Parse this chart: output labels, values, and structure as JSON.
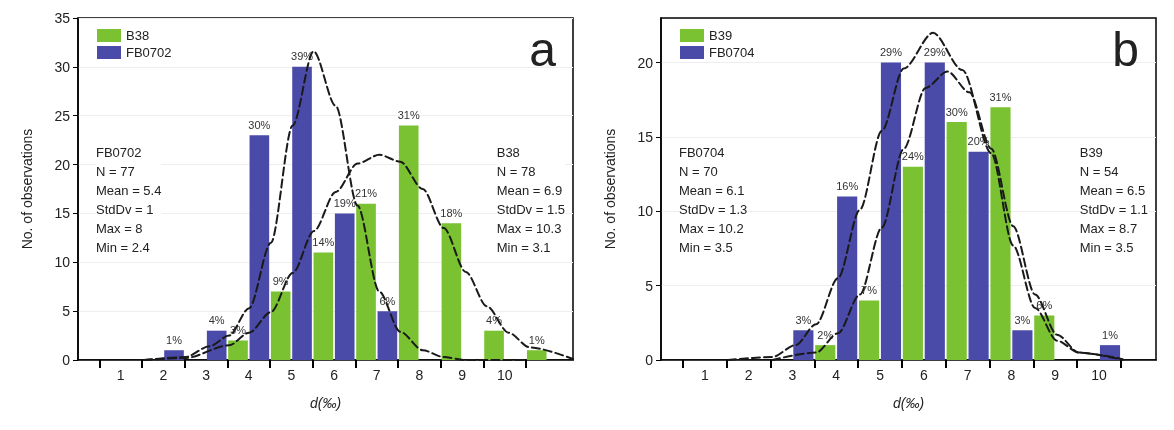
{
  "chart_data": [
    {
      "type": "bar",
      "title": "a",
      "xlabel": "d(‰)",
      "ylabel": "No. of observations",
      "xlim": [
        0,
        11.6
      ],
      "xticks": [
        {
          "value": 0.5,
          "label": null
        },
        1,
        {
          "value": 1.5,
          "label": null
        },
        2,
        {
          "value": 2.5,
          "label": null
        },
        3,
        {
          "value": 3.5,
          "label": null
        },
        4,
        {
          "value": 4.5,
          "label": null
        },
        5,
        {
          "value": 5.5,
          "label": null
        },
        6,
        {
          "value": 6.5,
          "label": null
        },
        7,
        {
          "value": 7.5,
          "label": null
        },
        8,
        {
          "value": 8.5,
          "label": null
        },
        9,
        {
          "value": 9.5,
          "label": null
        },
        10,
        {
          "value": 10.5,
          "label": null
        }
      ],
      "ylim": [
        0,
        35
      ],
      "yticks": [
        0,
        5,
        10,
        15,
        20,
        25,
        30,
        35
      ],
      "grid": "y",
      "legend": "top left",
      "annotations": [
        "FB0702\nN = 77\nMean = 5.4\nStdDv = 1\nMax = 8\nMin = 2.4",
        "B38\nN = 78\nMean = 6.9\nStdDv = 1.5\nMax = 10.3\nMin = 3.1",
        {
          "text": "3%",
          "x": 3.75,
          "y": 2
        },
        {
          "text": "9%",
          "x": 4.75,
          "y": 7
        },
        {
          "text": "14%",
          "x": 5.75,
          "y": 11
        },
        {
          "text": "21%",
          "x": 6.75,
          "y": 16
        },
        {
          "text": "31%",
          "x": 7.75,
          "y": 24
        },
        {
          "text": "18%",
          "x": 8.75,
          "y": 14
        },
        {
          "text": "4%",
          "x": 9.75,
          "y": 3
        },
        {
          "text": "1%",
          "x": 10.75,
          "y": 1
        },
        {
          "text": "1%",
          "x": 2.25,
          "y": 1
        },
        {
          "text": "4%",
          "x": 3.25,
          "y": 3
        },
        {
          "text": "30%",
          "x": 4.25,
          "y": 23
        },
        {
          "text": "39%",
          "x": 5.25,
          "y": 30
        },
        {
          "text": "19%",
          "x": 6.25,
          "y": 15
        },
        {
          "text": "6%",
          "x": 7.25,
          "y": 5
        }
      ],
      "series": [
        {
          "name": "B38",
          "color": "#7ac231",
          "x": [
            3.75,
            4.75,
            5.75,
            6.75,
            7.75,
            8.75,
            9.75,
            10.75
          ],
          "values": [
            2,
            7,
            11,
            16,
            24,
            14,
            3,
            1
          ]
        },
        {
          "name": "FB0702",
          "color": "#4a4aa8",
          "x": [
            2.25,
            3.25,
            4.25,
            5.25,
            6.25,
            7.25
          ],
          "values": [
            1,
            3,
            23,
            30,
            15,
            5
          ]
        },
        {
          "type": "line",
          "color": "#1a1a1a",
          "line_style": "dashed",
          "marker": "none",
          "x": [
            1.55,
            2.51,
            3.08,
            3.54,
            4.01,
            4.52,
            5.03,
            5.52,
            6.04,
            6.55,
            7.06,
            7.55,
            8.08,
            8.57,
            9.09,
            10.5
          ],
          "values": [
            0,
            0.3,
            1.4,
            2.5,
            5.3,
            12,
            24,
            31.6,
            26,
            15.8,
            7,
            2.9,
            1,
            0.3,
            0,
            0
          ]
        },
        {
          "type": "line",
          "color": "#1a1a1a",
          "line_style": "dashed",
          "marker": "none",
          "x": [
            1.55,
            2.51,
            3.54,
            4.01,
            4.52,
            5.03,
            5.53,
            6.04,
            6.55,
            7.06,
            7.55,
            8.08,
            8.57,
            9.09,
            9.58,
            10.09,
            10.58,
            11.6
          ],
          "values": [
            0,
            0.2,
            1.5,
            2.8,
            4.9,
            8.9,
            13.2,
            17.2,
            20.1,
            21,
            20.3,
            17.5,
            13.5,
            9,
            5.5,
            2.8,
            1.3,
            0.1
          ]
        }
      ]
    },
    {
      "type": "bar",
      "title": "b",
      "xlabel": "d(‰)",
      "ylabel": "No. of observations",
      "xlim": [
        0,
        11.3
      ],
      "xticks": [
        {
          "value": 0.5,
          "label": null
        },
        1,
        {
          "value": 1.5,
          "label": null
        },
        2,
        {
          "value": 2.5,
          "label": null
        },
        3,
        {
          "value": 3.5,
          "label": null
        },
        4,
        {
          "value": 4.5,
          "label": null
        },
        5,
        {
          "value": 5.5,
          "label": null
        },
        6,
        {
          "value": 6.5,
          "label": null
        },
        7,
        {
          "value": 7.5,
          "label": null
        },
        8,
        {
          "value": 8.5,
          "label": null
        },
        9,
        {
          "value": 9.5,
          "label": null
        },
        10,
        {
          "value": 10.5,
          "label": null
        }
      ],
      "ylim": [
        0,
        23
      ],
      "yticks": [
        0,
        5,
        10,
        15,
        20
      ],
      "grid": "y",
      "legend": "top left",
      "annotations": [
        "FB0704\nN = 70\nMean = 6.1\nStdDv = 1.3\nMax = 10.2\nMin = 3.5",
        "B39\nN = 54\nMean = 6.5\nStdDv = 1.1\nMax = 8.7\nMin = 3.5",
        {
          "text": "2%",
          "x": 3.75,
          "y": 1
        },
        {
          "text": "7%",
          "x": 4.75,
          "y": 4
        },
        {
          "text": "24%",
          "x": 5.75,
          "y": 13
        },
        {
          "text": "30%",
          "x": 6.75,
          "y": 16
        },
        {
          "text": "31%",
          "x": 7.75,
          "y": 17
        },
        {
          "text": "6%",
          "x": 8.75,
          "y": 3
        },
        {
          "text": "3%",
          "x": 3.25,
          "y": 2
        },
        {
          "text": "16%",
          "x": 4.25,
          "y": 11
        },
        {
          "text": "29%",
          "x": 5.25,
          "y": 20
        },
        {
          "text": "29%",
          "x": 6.25,
          "y": 20
        },
        {
          "text": "20%",
          "x": 7.25,
          "y": 14
        },
        {
          "text": "3%",
          "x": 8.25,
          "y": 2
        },
        {
          "text": "1%",
          "x": 10.25,
          "y": 1
        }
      ],
      "series": [
        {
          "name": "B39",
          "color": "#7ac231",
          "x": [
            3.75,
            4.75,
            5.75,
            6.75,
            7.75,
            8.75
          ],
          "values": [
            1,
            4,
            13,
            16,
            17,
            3
          ]
        },
        {
          "name": "FB0704",
          "color": "#4a4aa8",
          "x": [
            3.25,
            4.25,
            5.25,
            6.25,
            7.25,
            8.25,
            10.25
          ],
          "values": [
            2,
            11,
            20,
            20,
            14,
            2,
            1
          ]
        },
        {
          "type": "line",
          "color": "#1a1a1a",
          "line_style": "dashed",
          "marker": "none",
          "x": [
            1.53,
            2.54,
            3.07,
            3.54,
            4.04,
            4.54,
            5.04,
            5.54,
            6.21,
            6.88,
            7.54,
            8.04,
            8.54,
            9.04,
            9.54,
            10.54
          ],
          "values": [
            0,
            0.2,
            1,
            2.4,
            5.5,
            10.1,
            15.4,
            19.6,
            22,
            19.5,
            13.9,
            7.7,
            3.5,
            1.3,
            0.5,
            0.05
          ]
        },
        {
          "type": "line",
          "color": "#1a1a1a",
          "line_style": "dashed",
          "marker": "none",
          "x": [
            2.54,
            3.54,
            4.04,
            4.54,
            5.04,
            5.54,
            6.04,
            6.54,
            7.04,
            7.54,
            8.04,
            8.54,
            9.04,
            9.54,
            10.54
          ],
          "values": [
            0,
            0.5,
            1.8,
            4.4,
            8.9,
            14.2,
            18.3,
            19.4,
            18,
            14.2,
            9,
            4.4,
            1.7,
            0.5,
            0
          ]
        }
      ]
    }
  ]
}
